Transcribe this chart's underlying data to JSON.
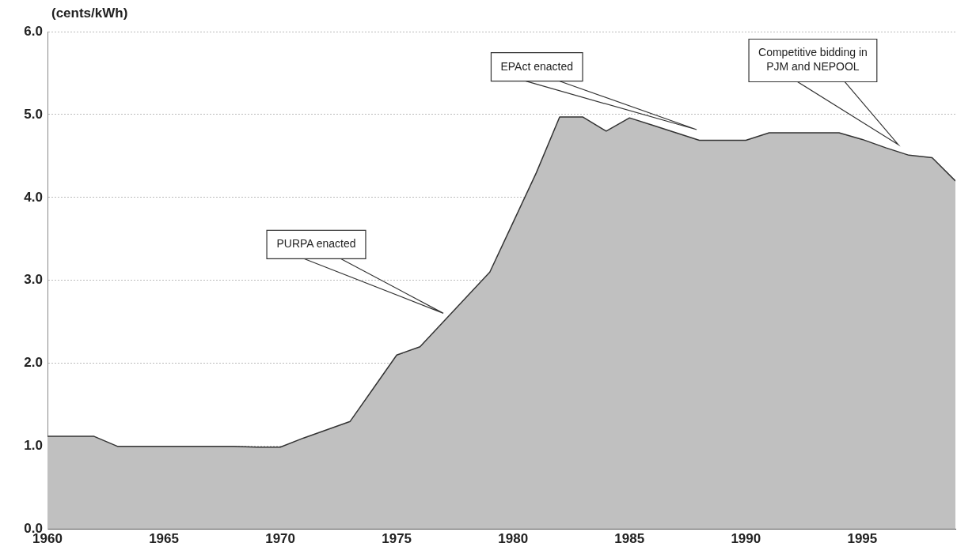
{
  "chart_data": {
    "type": "area",
    "ylabel": "(cents/kWh)",
    "x": [
      1960,
      1961,
      1962,
      1963,
      1964,
      1965,
      1966,
      1967,
      1968,
      1969,
      1970,
      1971,
      1972,
      1973,
      1974,
      1975,
      1976,
      1977,
      1978,
      1979,
      1980,
      1981,
      1982,
      1983,
      1984,
      1985,
      1986,
      1987,
      1988,
      1989,
      1990,
      1991,
      1992,
      1993,
      1994,
      1995,
      1996,
      1997,
      1998,
      1999
    ],
    "series": [
      {
        "color": "#c0c0c0",
        "values": [
          1.12,
          1.12,
          1.12,
          1.0,
          1.0,
          1.0,
          1.0,
          1.0,
          1.0,
          0.99,
          0.99,
          1.1,
          1.2,
          1.3,
          1.7,
          2.1,
          2.2,
          2.5,
          2.8,
          3.1,
          3.7,
          4.3,
          4.97,
          4.97,
          4.8,
          4.96,
          4.87,
          4.78,
          4.69,
          4.69,
          4.69,
          4.78,
          4.78,
          4.78,
          4.78,
          4.7,
          4.6,
          4.51,
          4.48,
          4.2
        ]
      }
    ],
    "xlim": [
      1960,
      1999
    ],
    "xticks": [
      1960,
      1965,
      1970,
      1975,
      1980,
      1985,
      1990,
      1995
    ],
    "ylim": [
      0,
      6
    ],
    "yticks": [
      {
        "value": 0,
        "label": "0.0"
      },
      {
        "value": 1,
        "label": "1.0"
      },
      {
        "value": 2,
        "label": "2.0"
      },
      {
        "value": 3,
        "label": "3.0"
      },
      {
        "value": 4,
        "label": "4.0"
      },
      {
        "value": 5,
        "label": "5.0"
      },
      {
        "value": 6,
        "label": "6.0"
      }
    ],
    "grid": "y",
    "legend": false,
    "marker": "none",
    "annotations": [
      "PURPA enacted",
      "EPAct enacted",
      "Competitive bidding in PJM and NEPOOL"
    ]
  }
}
